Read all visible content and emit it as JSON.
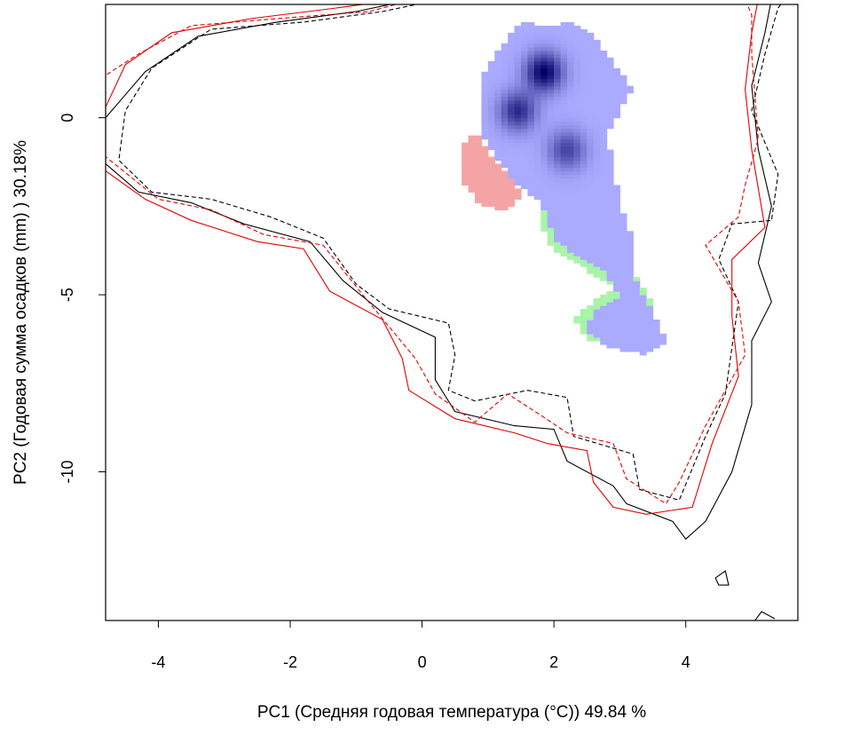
{
  "chart_data": {
    "type": "heatmap",
    "title": "",
    "xlabel": "PC1 (Средняя годовая температура (°C)) 49.84 %",
    "ylabel": "PC2 (Годовая сумма осадков  (mm) ) 30.18%",
    "xlim": [
      -4.8,
      5.7
    ],
    "ylim": [
      -14.2,
      3.2
    ],
    "x_ticks": [
      -4,
      -2,
      0,
      2,
      4
    ],
    "x_tick_labels": [
      "-4",
      "-2",
      "0",
      "2",
      "4"
    ],
    "y_ticks": [
      0,
      -5,
      -10
    ],
    "y_tick_labels": [
      "0",
      "-5",
      "-10"
    ],
    "grid": false,
    "colors": {
      "overlap_low": "#aaaaff",
      "overlap_high": "#000066",
      "only_red": "#f4a4a4",
      "only_green": "#a8f4a8",
      "contour_black": "#000000",
      "contour_red": "#e00000"
    },
    "cells": {
      "cell_width": 0.1,
      "blue": [
        {
          "x": 0.9,
          "y": 1.0
        },
        {
          "x": 1.0,
          "y": 1.5
        },
        {
          "x": 1.2,
          "y": 2.0
        },
        {
          "x": 1.4,
          "y": 2.5
        },
        {
          "x": 1.6,
          "y": 2.7
        },
        {
          "x": 1.8,
          "y": 2.6
        },
        {
          "x": 2.0,
          "y": 2.6
        },
        {
          "x": 2.2,
          "y": 2.7
        },
        {
          "x": 2.4,
          "y": 2.6
        },
        {
          "x": 2.6,
          "y": 2.3
        },
        {
          "x": 2.8,
          "y": 1.8
        },
        {
          "x": 3.0,
          "y": 1.3
        },
        {
          "x": 3.2,
          "y": 0.8
        },
        {
          "x": 3.0,
          "y": 0.2
        },
        {
          "x": 2.8,
          "y": -0.5
        },
        {
          "x": 2.9,
          "y": -1.3
        },
        {
          "x": 3.0,
          "y": -2.5
        },
        {
          "x": 3.2,
          "y": -3.4
        },
        {
          "x": 3.2,
          "y": -4.4
        },
        {
          "x": 3.4,
          "y": -5.2
        },
        {
          "x": 3.6,
          "y": -5.8
        },
        {
          "x": 3.7,
          "y": -6.4
        },
        {
          "x": 3.4,
          "y": -6.7
        },
        {
          "x": 2.8,
          "y": -6.5
        },
        {
          "x": 2.5,
          "y": -6.0
        },
        {
          "x": 2.6,
          "y": -5.4
        },
        {
          "x": 3.0,
          "y": -5.1
        },
        {
          "x": 2.8,
          "y": -4.4
        },
        {
          "x": 2.4,
          "y": -4.0
        },
        {
          "x": 2.0,
          "y": -3.4
        },
        {
          "x": 1.8,
          "y": -2.4
        },
        {
          "x": 1.4,
          "y": -1.8
        },
        {
          "x": 1.1,
          "y": -1.1
        },
        {
          "x": 0.9,
          "y": -0.4
        }
      ],
      "red_only": [
        {
          "x": 0.6,
          "y": -0.8
        },
        {
          "x": 0.6,
          "y": -1.8
        },
        {
          "x": 0.9,
          "y": -2.5
        },
        {
          "x": 1.3,
          "y": -2.6
        },
        {
          "x": 1.5,
          "y": -2.2
        },
        {
          "x": 1.3,
          "y": -1.6
        },
        {
          "x": 1.0,
          "y": -1.0
        },
        {
          "x": 0.8,
          "y": -0.4
        }
      ],
      "green_only": [
        {
          "x": 1.8,
          "y": -2.3
        },
        {
          "x": 2.1,
          "y": -2.5
        },
        {
          "x": 2.1,
          "y": -3.2
        },
        {
          "x": 2.6,
          "y": -3.7
        },
        {
          "x": 3.0,
          "y": -4.0
        },
        {
          "x": 3.3,
          "y": -4.6
        },
        {
          "x": 3.5,
          "y": -5.3
        },
        {
          "x": 3.5,
          "y": -6.0
        },
        {
          "x": 2.5,
          "y": -6.3
        },
        {
          "x": 2.3,
          "y": -5.7
        },
        {
          "x": 2.6,
          "y": -5.2
        },
        {
          "x": 2.9,
          "y": -4.8
        },
        {
          "x": 2.5,
          "y": -4.3
        },
        {
          "x": 2.0,
          "y": -3.8
        },
        {
          "x": 1.8,
          "y": -3.0
        }
      ]
    },
    "density_peaks": [
      {
        "x": 1.85,
        "y": 1.3,
        "strength": 1.0
      },
      {
        "x": 1.45,
        "y": 0.2,
        "strength": 0.75
      },
      {
        "x": 2.2,
        "y": -0.9,
        "strength": 0.6
      }
    ],
    "series": [
      {
        "color": "#000000",
        "dash": "solid",
        "points": [
          [
            -0.1,
            3.35
          ],
          [
            -1.0,
            3.0
          ],
          [
            -2.2,
            2.7
          ],
          [
            -3.4,
            2.3
          ],
          [
            -4.2,
            1.3
          ],
          [
            -4.8,
            0.0
          ],
          [
            -4.8,
            -1.3
          ],
          [
            -4.3,
            -2.1
          ],
          [
            -3.5,
            -2.4
          ],
          [
            -2.7,
            -3.0
          ],
          [
            -1.7,
            -3.5
          ],
          [
            -1.2,
            -4.6
          ],
          [
            -0.6,
            -5.5
          ],
          [
            0.2,
            -6.2
          ],
          [
            0.2,
            -7.4
          ],
          [
            0.5,
            -8.3
          ],
          [
            1.4,
            -8.7
          ],
          [
            2.0,
            -8.8
          ],
          [
            2.2,
            -9.7
          ],
          [
            2.9,
            -10.4
          ],
          [
            3.1,
            -10.9
          ],
          [
            3.8,
            -11.4
          ],
          [
            4.0,
            -11.9
          ],
          [
            4.3,
            -11.4
          ],
          [
            4.7,
            -10.0
          ],
          [
            5.0,
            -8.1
          ],
          [
            5.0,
            -6.3
          ],
          [
            5.3,
            -5.2
          ],
          [
            5.1,
            -4.1
          ],
          [
            5.2,
            -3.3
          ],
          [
            5.3,
            -2.5
          ],
          [
            5.1,
            -0.9
          ],
          [
            5.0,
            0.9
          ],
          [
            5.2,
            2.4
          ],
          [
            5.3,
            3.35
          ]
        ]
      },
      {
        "color": "#000000",
        "dash": "dashed",
        "points": [
          [
            0.3,
            3.35
          ],
          [
            -0.6,
            3.0
          ],
          [
            -1.8,
            2.7
          ],
          [
            -3.2,
            2.5
          ],
          [
            -4.1,
            1.4
          ],
          [
            -4.5,
            0.2
          ],
          [
            -4.6,
            -1.2
          ],
          [
            -4.1,
            -2.1
          ],
          [
            -3.2,
            -2.3
          ],
          [
            -2.3,
            -2.8
          ],
          [
            -1.5,
            -3.4
          ],
          [
            -1.0,
            -4.7
          ],
          [
            -0.5,
            -5.4
          ],
          [
            0.4,
            -5.8
          ],
          [
            0.5,
            -6.7
          ],
          [
            0.4,
            -7.7
          ],
          [
            0.8,
            -8.0
          ],
          [
            1.6,
            -7.7
          ],
          [
            2.2,
            -7.9
          ],
          [
            2.3,
            -9.0
          ],
          [
            3.2,
            -9.5
          ],
          [
            3.3,
            -10.5
          ],
          [
            3.9,
            -10.8
          ],
          [
            4.3,
            -9.0
          ],
          [
            4.6,
            -7.8
          ],
          [
            4.8,
            -5.2
          ],
          [
            4.5,
            -4.0
          ],
          [
            4.7,
            -3.0
          ],
          [
            5.3,
            -2.9
          ],
          [
            5.4,
            -1.6
          ],
          [
            5.0,
            0.2
          ],
          [
            5.2,
            1.8
          ],
          [
            5.4,
            3.1
          ],
          [
            5.5,
            3.35
          ]
        ]
      },
      {
        "color": "#e00000",
        "dash": "solid",
        "points": [
          [
            -0.3,
            3.35
          ],
          [
            -1.3,
            3.1
          ],
          [
            -2.6,
            2.8
          ],
          [
            -3.8,
            2.4
          ],
          [
            -4.5,
            1.5
          ],
          [
            -4.8,
            0.3
          ],
          [
            -4.8,
            -1.5
          ],
          [
            -4.2,
            -2.3
          ],
          [
            -3.5,
            -2.9
          ],
          [
            -2.5,
            -3.5
          ],
          [
            -1.8,
            -3.7
          ],
          [
            -1.4,
            -4.9
          ],
          [
            -0.6,
            -5.7
          ],
          [
            -0.3,
            -6.8
          ],
          [
            -0.2,
            -7.7
          ],
          [
            0.5,
            -8.5
          ],
          [
            1.4,
            -8.9
          ],
          [
            1.9,
            -9.2
          ],
          [
            2.5,
            -9.4
          ],
          [
            2.6,
            -10.3
          ],
          [
            2.9,
            -11.0
          ],
          [
            3.4,
            -11.2
          ],
          [
            4.1,
            -11.0
          ],
          [
            4.4,
            -9.2
          ],
          [
            4.8,
            -7.3
          ],
          [
            4.7,
            -5.6
          ],
          [
            4.7,
            -4.0
          ],
          [
            5.2,
            -3.1
          ],
          [
            5.1,
            -2.0
          ],
          [
            5.0,
            -0.9
          ],
          [
            4.9,
            0.8
          ],
          [
            5.0,
            2.4
          ],
          [
            5.1,
            3.35
          ]
        ]
      },
      {
        "color": "#e00000",
        "dash": "dashed",
        "points": [
          [
            -0.1,
            3.35
          ],
          [
            -0.8,
            3.0
          ],
          [
            -2.2,
            2.8
          ],
          [
            -3.5,
            2.6
          ],
          [
            -4.3,
            1.8
          ],
          [
            -4.8,
            1.2
          ],
          [
            -4.8,
            -1.1
          ],
          [
            -4.0,
            -2.3
          ],
          [
            -3.2,
            -2.6
          ],
          [
            -2.4,
            -3.3
          ],
          [
            -1.5,
            -3.6
          ],
          [
            -0.9,
            -5.0
          ],
          [
            -0.5,
            -5.9
          ],
          [
            -0.1,
            -6.8
          ],
          [
            0.2,
            -7.8
          ],
          [
            0.8,
            -8.6
          ],
          [
            1.3,
            -7.8
          ],
          [
            1.8,
            -8.4
          ],
          [
            2.2,
            -8.9
          ],
          [
            2.9,
            -9.2
          ],
          [
            3.1,
            -10.2
          ],
          [
            3.7,
            -10.9
          ],
          [
            3.9,
            -10.3
          ],
          [
            4.3,
            -8.7
          ],
          [
            4.9,
            -6.7
          ],
          [
            4.8,
            -5.2
          ],
          [
            4.3,
            -3.6
          ],
          [
            4.8,
            -2.8
          ],
          [
            4.9,
            -1.9
          ],
          [
            5.1,
            -0.6
          ],
          [
            5.0,
            1.8
          ],
          [
            5.0,
            2.9
          ],
          [
            4.9,
            3.35
          ]
        ]
      },
      {
        "color": "#000000",
        "dash": "solid",
        "points": [
          [
            4.45,
            -13.0
          ],
          [
            4.6,
            -12.8
          ],
          [
            4.65,
            -13.2
          ],
          [
            4.5,
            -13.2
          ],
          [
            4.45,
            -13.0
          ]
        ]
      },
      {
        "color": "#000000",
        "dash": "solid",
        "points": [
          [
            5.05,
            -14.2
          ],
          [
            5.15,
            -13.95
          ],
          [
            5.35,
            -14.15
          ]
        ]
      }
    ]
  }
}
